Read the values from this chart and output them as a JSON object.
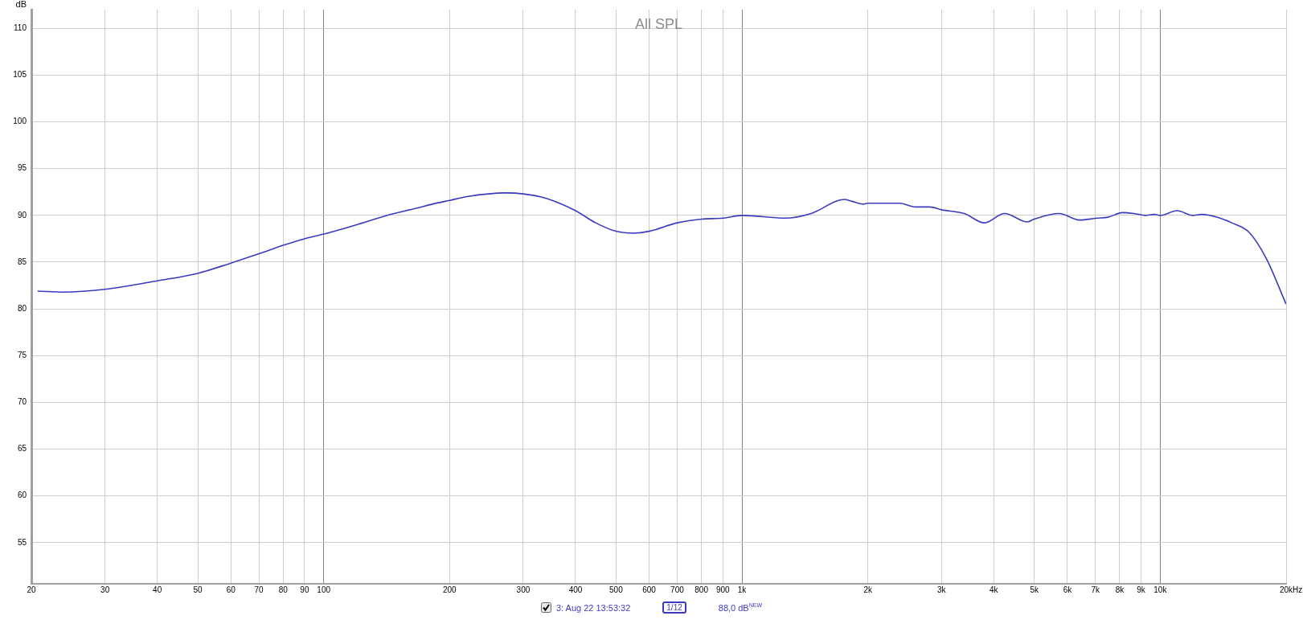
{
  "chart_data": {
    "type": "line",
    "title": "All SPL",
    "ylabel": "dB",
    "x": [
      20.7,
      23.9,
      30,
      40,
      50,
      60,
      70,
      80,
      90,
      100,
      124,
      142,
      168,
      182,
      200,
      220,
      272,
      300,
      342,
      400,
      447,
      500,
      550,
      600,
      700,
      800,
      900,
      1000,
      1270,
      1464,
      1757,
      1833,
      1950,
      2000,
      2148,
      2379,
      2597,
      2812,
      3000,
      3400,
      3799,
      4243,
      4815,
      5000,
      5733,
      6404,
      7043,
      7504,
      8124,
      8655,
      9219,
      9669,
      10000,
      10974,
      11975,
      12556,
      13702,
      14826,
      16300,
      17925,
      20000
    ],
    "series": [
      {
        "name": "3: Aug 22 13:53:32",
        "color": "#3b3bbf",
        "values": [
          81.9,
          81.8,
          82.1,
          83.0,
          83.8,
          84.9,
          85.9,
          86.8,
          87.5,
          88.0,
          89.2,
          90.0,
          90.8,
          91.2,
          91.6,
          92.0,
          92.4,
          92.3,
          91.8,
          90.5,
          89.2,
          88.3,
          88.1,
          88.3,
          89.2,
          89.6,
          89.7,
          90.0,
          89.7,
          90.2,
          91.7,
          91.5,
          91.2,
          91.3,
          91.3,
          91.3,
          90.9,
          90.9,
          90.6,
          90.2,
          89.2,
          90.2,
          89.3,
          89.6,
          90.2,
          89.5,
          89.7,
          89.8,
          90.3,
          90.2,
          90.0,
          90.1,
          90.0,
          90.5,
          90.0,
          90.1,
          89.8,
          89.2,
          88.2,
          85.4,
          80.5
        ]
      }
    ],
    "log": "x",
    "xlim": [
      20,
      20000
    ],
    "ylim": [
      50.6,
      112
    ],
    "xticks": [
      20,
      30,
      40,
      50,
      60,
      70,
      80,
      90,
      100,
      200,
      300,
      400,
      500,
      600,
      700,
      800,
      900,
      {
        "value": 1000,
        "label": "1k"
      },
      {
        "value": 2000,
        "label": "2k"
      },
      {
        "value": 3000,
        "label": "3k"
      },
      {
        "value": 4000,
        "label": "4k"
      },
      {
        "value": 5000,
        "label": "5k"
      },
      {
        "value": 6000,
        "label": "6k"
      },
      {
        "value": 7000,
        "label": "7k"
      },
      {
        "value": 8000,
        "label": "8k"
      },
      {
        "value": 9000,
        "label": "9k"
      },
      {
        "value": 10000,
        "label": "10k"
      },
      {
        "value": 20000,
        "label": "20k"
      }
    ],
    "xlabel": "Hz",
    "yticks": [
      55,
      60,
      65,
      70,
      75,
      80,
      85,
      90,
      95,
      100,
      105,
      110
    ],
    "grid": true,
    "legend": "bottom",
    "marker": "none",
    "line_style": "solid",
    "annotations": [
      "1/12",
      "88,0 dB$^{NEW}$"
    ]
  }
}
